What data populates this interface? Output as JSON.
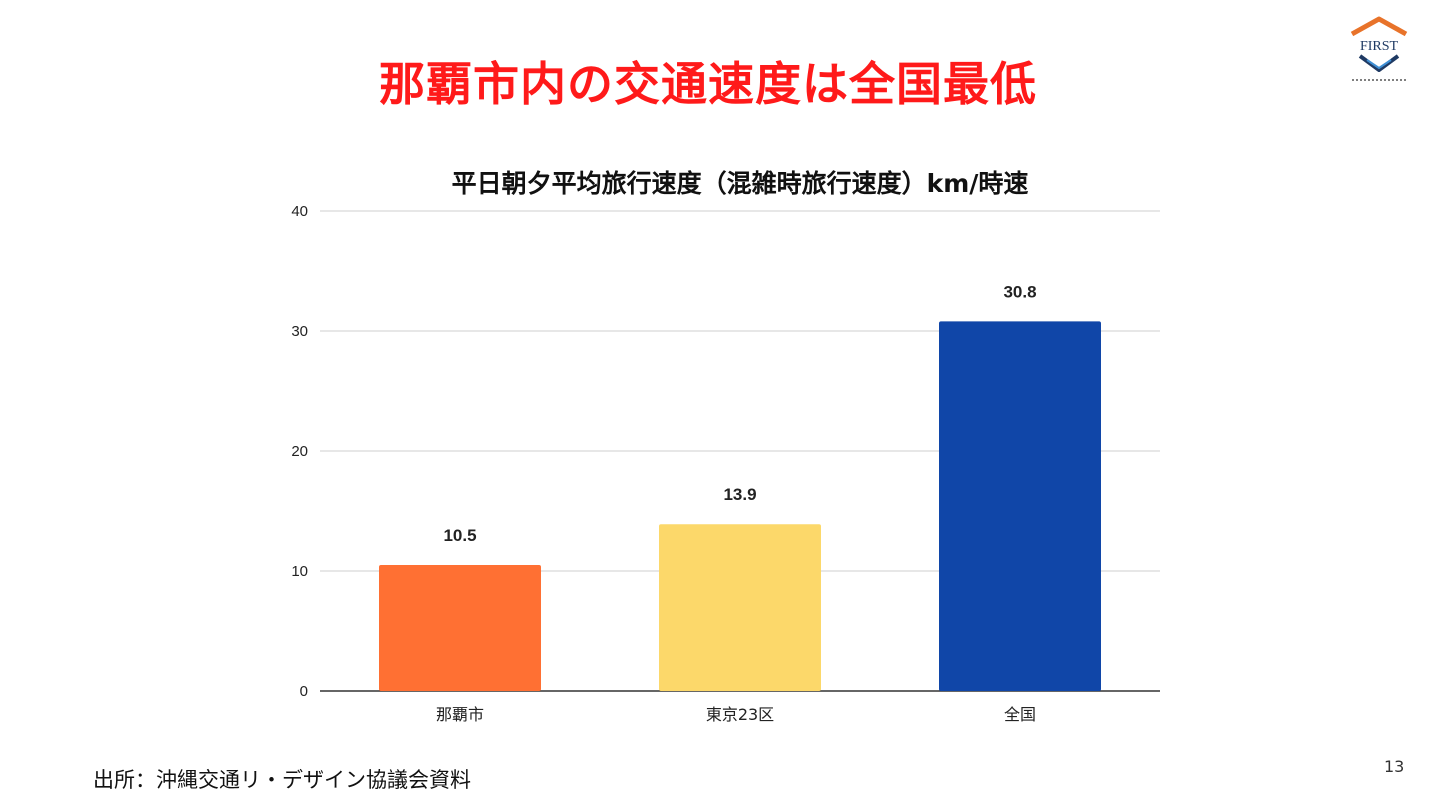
{
  "slide": {
    "title": "那覇市内の交通速度は全国最低",
    "source": "出所：沖縄交通リ・デザイン協議会資料",
    "page_number": "13"
  },
  "logo": {
    "text": "FIRST",
    "icon": "house-shield-logo-icon",
    "brand_color": "#e8732a",
    "accent_color": "#1f3a63"
  },
  "chart_data": {
    "type": "bar",
    "title": "平日朝夕平均旅行速度（混雑時旅行速度）km/時速",
    "categories": [
      "那覇市",
      "東京23区",
      "全国"
    ],
    "values": [
      10.5,
      13.9,
      30.8
    ],
    "value_labels": [
      "10.5",
      "13.9",
      "30.8"
    ],
    "colors": [
      "#ff7033",
      "#fcd86a",
      "#1046a8"
    ],
    "yticks": [
      "0",
      "10",
      "20",
      "30",
      "40"
    ],
    "ylim": [
      0,
      40
    ],
    "xlabel": "",
    "ylabel": "",
    "grid": true,
    "legend": "none"
  }
}
